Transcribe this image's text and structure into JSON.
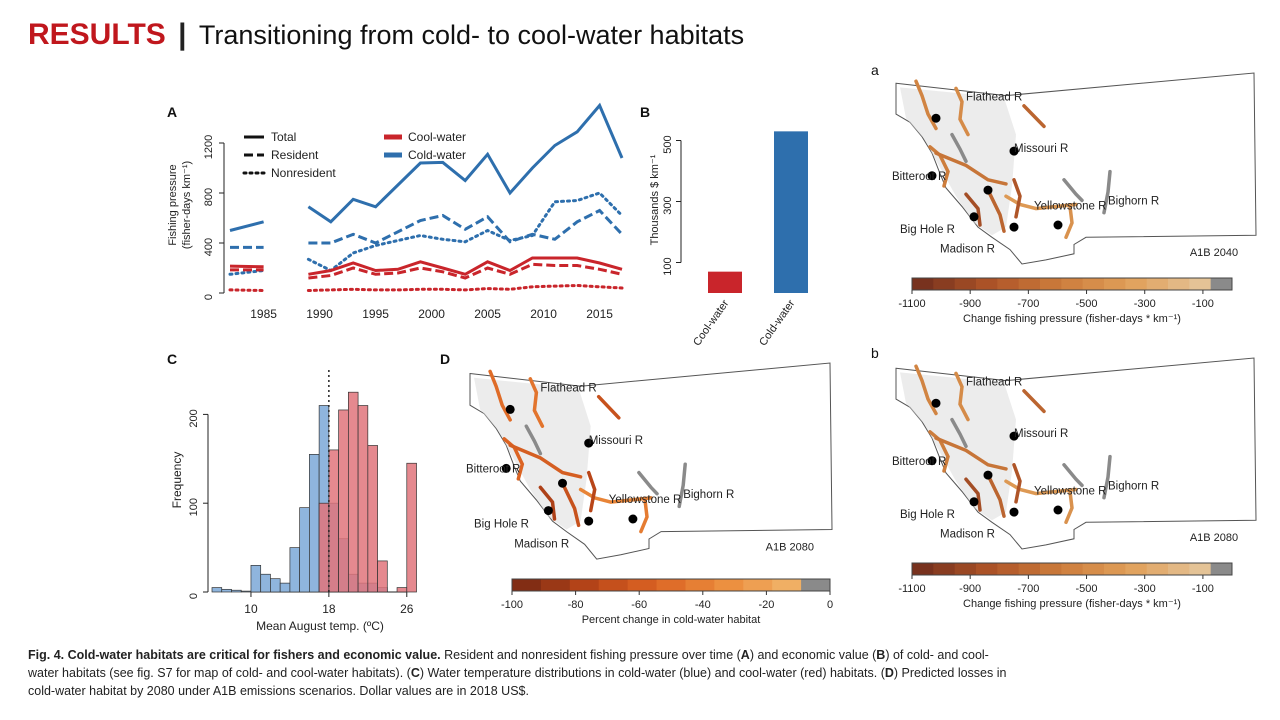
{
  "slide": {
    "results": "RESULTS",
    "separator": "|",
    "subtitle": "Transitioning from cold- to cool-water habitats"
  },
  "caption": {
    "bold": "Fig. 4. Cold-water habitats are critical for fishers and economic value.",
    "t1": " Resident and nonresident fishing pressure over time (",
    "A": "A",
    "t2": ") and economic value (",
    "B": "B",
    "t3": ") of cold- and cool-water habitats (see fig. S7 for map of cold- and cool-water habitats). (",
    "C": "C",
    "t4": ") Water temperature distributions in cold-water (blue) and cool-water (red) habitats. (",
    "D": "D",
    "t5": ") Predicted losses in cold-water habitat by 2080 under A1B emissions scenarios. Dollar values are in 2018 US$."
  },
  "colors": {
    "cold": "#2e6fad",
    "cool": "#c9252b",
    "coldHist": "#8fb5dd",
    "coolHist": "#e0747b"
  },
  "chart_data": [
    {
      "panel": "A",
      "type": "line",
      "ylabel": "Fishing pressure",
      "ylabel2": "(fisher-days km⁻¹)",
      "xlim": [
        1982,
        2017
      ],
      "ylim": [
        0,
        1400
      ],
      "xticks": [
        1985,
        1990,
        1995,
        2000,
        2005,
        2010,
        2015
      ],
      "yticks": [
        0,
        400,
        800,
        1200
      ],
      "legend_styles": [
        "Total",
        "Resident",
        "Nonresident"
      ],
      "legend_habitats": [
        "Cool-water",
        "Cold-water"
      ],
      "segments": [
        {
          "habitat": "cold",
          "style": "Total",
          "x": [
            1982,
            1985
          ],
          "y": [
            500,
            570
          ]
        },
        {
          "habitat": "cold",
          "style": "Resident",
          "x": [
            1982,
            1985
          ],
          "y": [
            365,
            365
          ]
        },
        {
          "habitat": "cold",
          "style": "Nonresident",
          "x": [
            1982,
            1985
          ],
          "y": [
            150,
            180
          ]
        },
        {
          "habitat": "cool",
          "style": "Total",
          "x": [
            1982,
            1985
          ],
          "y": [
            215,
            210
          ]
        },
        {
          "habitat": "cool",
          "style": "Resident",
          "x": [
            1982,
            1985
          ],
          "y": [
            185,
            185
          ]
        },
        {
          "habitat": "cool",
          "style": "Nonresident",
          "x": [
            1982,
            1985
          ],
          "y": [
            25,
            20
          ]
        },
        {
          "habitat": "cold",
          "style": "Total",
          "x": [
            1989,
            1991,
            1993,
            1995,
            1999,
            2001,
            2003,
            2005,
            2007,
            2009,
            2011,
            2013,
            2015,
            2017
          ],
          "y": [
            690,
            570,
            750,
            690,
            1040,
            1045,
            900,
            1110,
            800,
            1000,
            1180,
            1290,
            1500,
            1080
          ]
        },
        {
          "habitat": "cold",
          "style": "Resident",
          "x": [
            1989,
            1991,
            1993,
            1995,
            1999,
            2001,
            2003,
            2005,
            2007,
            2009,
            2011,
            2013,
            2015,
            2017
          ],
          "y": [
            400,
            400,
            470,
            400,
            580,
            620,
            510,
            610,
            410,
            470,
            430,
            570,
            660,
            470
          ]
        },
        {
          "habitat": "cold",
          "style": "Nonresident",
          "x": [
            1989,
            1991,
            1993,
            1995,
            1999,
            2001,
            2003,
            2005,
            2007,
            2009,
            2011,
            2013,
            2015,
            2017
          ],
          "y": [
            270,
            180,
            320,
            380,
            460,
            430,
            410,
            500,
            420,
            460,
            730,
            740,
            800,
            620
          ]
        },
        {
          "habitat": "cool",
          "style": "Total",
          "x": [
            1989,
            1991,
            1993,
            1995,
            1997,
            1999,
            2001,
            2003,
            2005,
            2007,
            2009,
            2011,
            2013,
            2015,
            2017
          ],
          "y": [
            150,
            180,
            240,
            180,
            190,
            250,
            200,
            150,
            250,
            180,
            280,
            280,
            280,
            240,
            190
          ]
        },
        {
          "habitat": "cool",
          "style": "Resident",
          "x": [
            1989,
            1991,
            1993,
            1995,
            1997,
            1999,
            2001,
            2003,
            2005,
            2007,
            2009,
            2011,
            2013,
            2015,
            2017
          ],
          "y": [
            120,
            140,
            200,
            150,
            160,
            200,
            170,
            120,
            200,
            150,
            230,
            220,
            220,
            190,
            150
          ]
        },
        {
          "habitat": "cool",
          "style": "Nonresident",
          "x": [
            1989,
            1991,
            1993,
            1995,
            1997,
            1999,
            2001,
            2003,
            2005,
            2007,
            2009,
            2011,
            2013,
            2015,
            2017
          ],
          "y": [
            20,
            25,
            30,
            25,
            25,
            30,
            30,
            25,
            35,
            30,
            50,
            55,
            60,
            50,
            40
          ]
        }
      ]
    },
    {
      "panel": "B",
      "type": "bar",
      "ylabel": "Thousands $ km⁻¹",
      "categories": [
        "Cool-water",
        "Cold-water"
      ],
      "values": [
        70,
        530
      ],
      "ylim": [
        0,
        600
      ],
      "yticks": [
        100,
        300,
        500
      ]
    },
    {
      "panel": "C",
      "type": "histogram",
      "xlabel": "Mean August temp. (ºC)",
      "ylabel": "Frequency",
      "xlim": [
        6,
        29
      ],
      "ylim": [
        0,
        250
      ],
      "xticks": [
        10,
        18,
        26
      ],
      "yticks": [
        0,
        100,
        200
      ],
      "bin_width": 1,
      "reference_line": 18,
      "series": [
        {
          "name": "Cold-water",
          "bin_starts": [
            6,
            7,
            8,
            9,
            10,
            11,
            12,
            13,
            14,
            15,
            16,
            17,
            18,
            19,
            20,
            21,
            22,
            23,
            24,
            25,
            26
          ],
          "values": [
            5,
            3,
            2,
            1,
            30,
            20,
            15,
            10,
            50,
            95,
            155,
            210,
            100,
            60,
            20,
            10,
            10,
            5,
            0,
            0,
            0
          ]
        },
        {
          "name": "Cool-water",
          "bin_starts": [
            17,
            18,
            19,
            20,
            21,
            22,
            23,
            24,
            25,
            26
          ],
          "values": [
            100,
            160,
            205,
            225,
            210,
            165,
            35,
            0,
            5,
            145
          ]
        }
      ]
    },
    {
      "panel": "D",
      "type": "map",
      "rivers": [
        "Flathead R",
        "Missouri R",
        "Bitteroot R",
        "Yellowstone R",
        "Bighorn R",
        "Big Hole R",
        "Madison R"
      ],
      "scenario": "A1B 2080",
      "colorbar": {
        "label": "Percent change in cold-water habitat",
        "ticks": [
          -100,
          -80,
          -60,
          -40,
          -20,
          0
        ],
        "range": [
          -100,
          0
        ]
      }
    },
    {
      "panel": "a",
      "type": "map",
      "rivers": [
        "Flathead R",
        "Missouri R",
        "Bitteroot R",
        "Yellowstone R",
        "Bighorn R",
        "Big Hole R",
        "Madison R"
      ],
      "scenario": "A1B 2040",
      "colorbar": {
        "label": "Change fishing pressure (fisher-days * km⁻¹)",
        "ticks": [
          -1100,
          -900,
          -700,
          -500,
          -300,
          -100
        ],
        "range": [
          -1100,
          0
        ]
      }
    },
    {
      "panel": "b",
      "type": "map",
      "rivers": [
        "Flathead R",
        "Missouri R",
        "Bitteroot R",
        "Yellowstone R",
        "Bighorn R",
        "Big Hole R",
        "Madison R"
      ],
      "scenario": "A1B 2080",
      "colorbar": {
        "label": "Change fishing pressure (fisher-days * km⁻¹)",
        "ticks": [
          -1100,
          -900,
          -700,
          -500,
          -300,
          -100
        ],
        "range": [
          -1100,
          0
        ]
      }
    }
  ]
}
